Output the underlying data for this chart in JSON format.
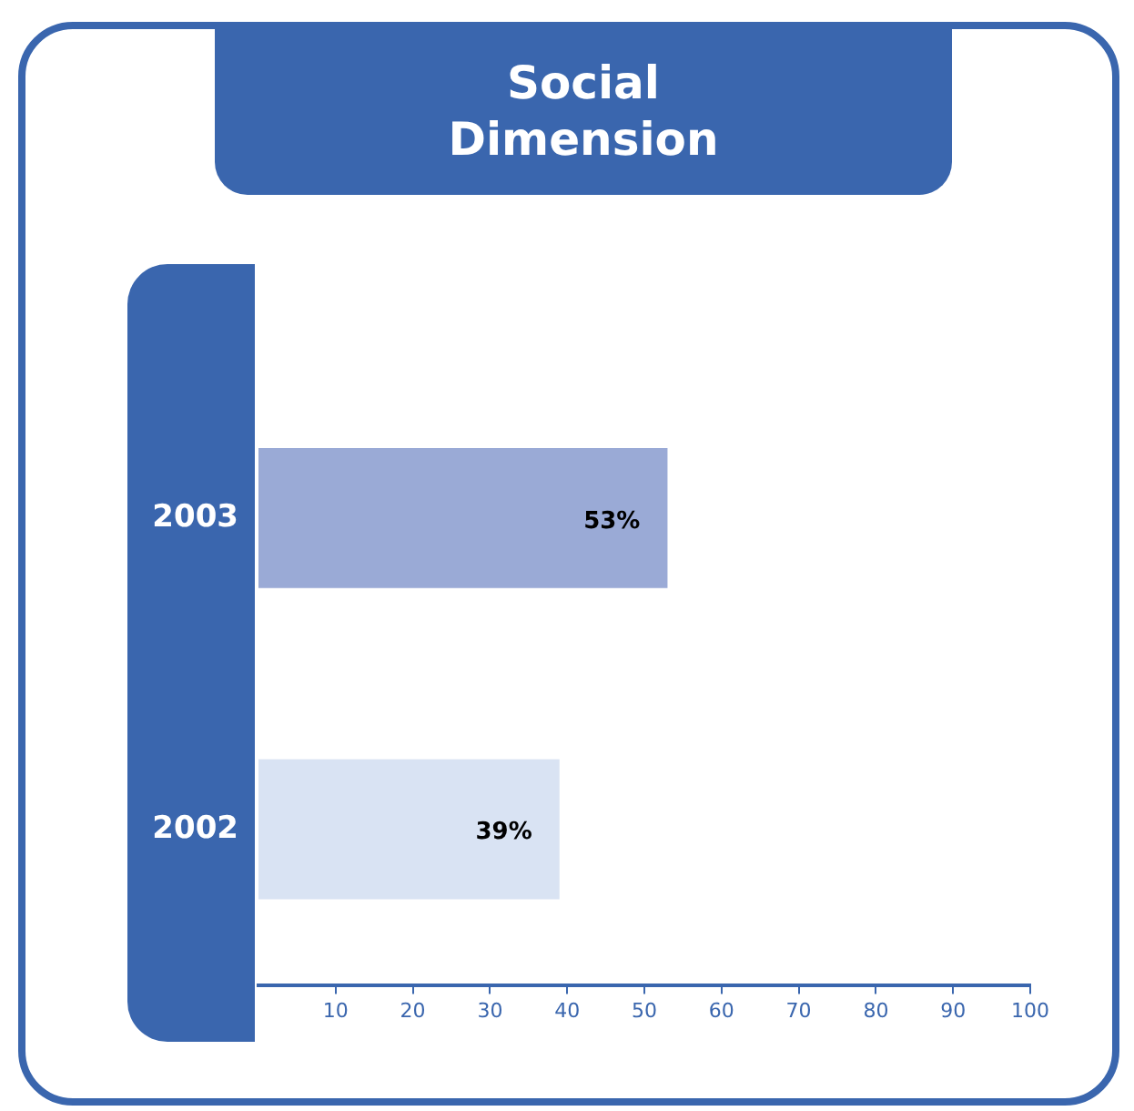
{
  "chart_data": {
    "type": "bar",
    "orientation": "horizontal",
    "title": "Social Dimension",
    "categories": [
      "2003",
      "2002"
    ],
    "values": [
      53,
      39
    ],
    "colors": [
      "#9aaad6",
      "#d9e3f3"
    ],
    "value_labels": [
      "53%",
      "39%"
    ],
    "xlim": [
      0,
      100
    ],
    "xticks": [
      10,
      20,
      30,
      40,
      50,
      60,
      70,
      80,
      90,
      100
    ]
  }
}
